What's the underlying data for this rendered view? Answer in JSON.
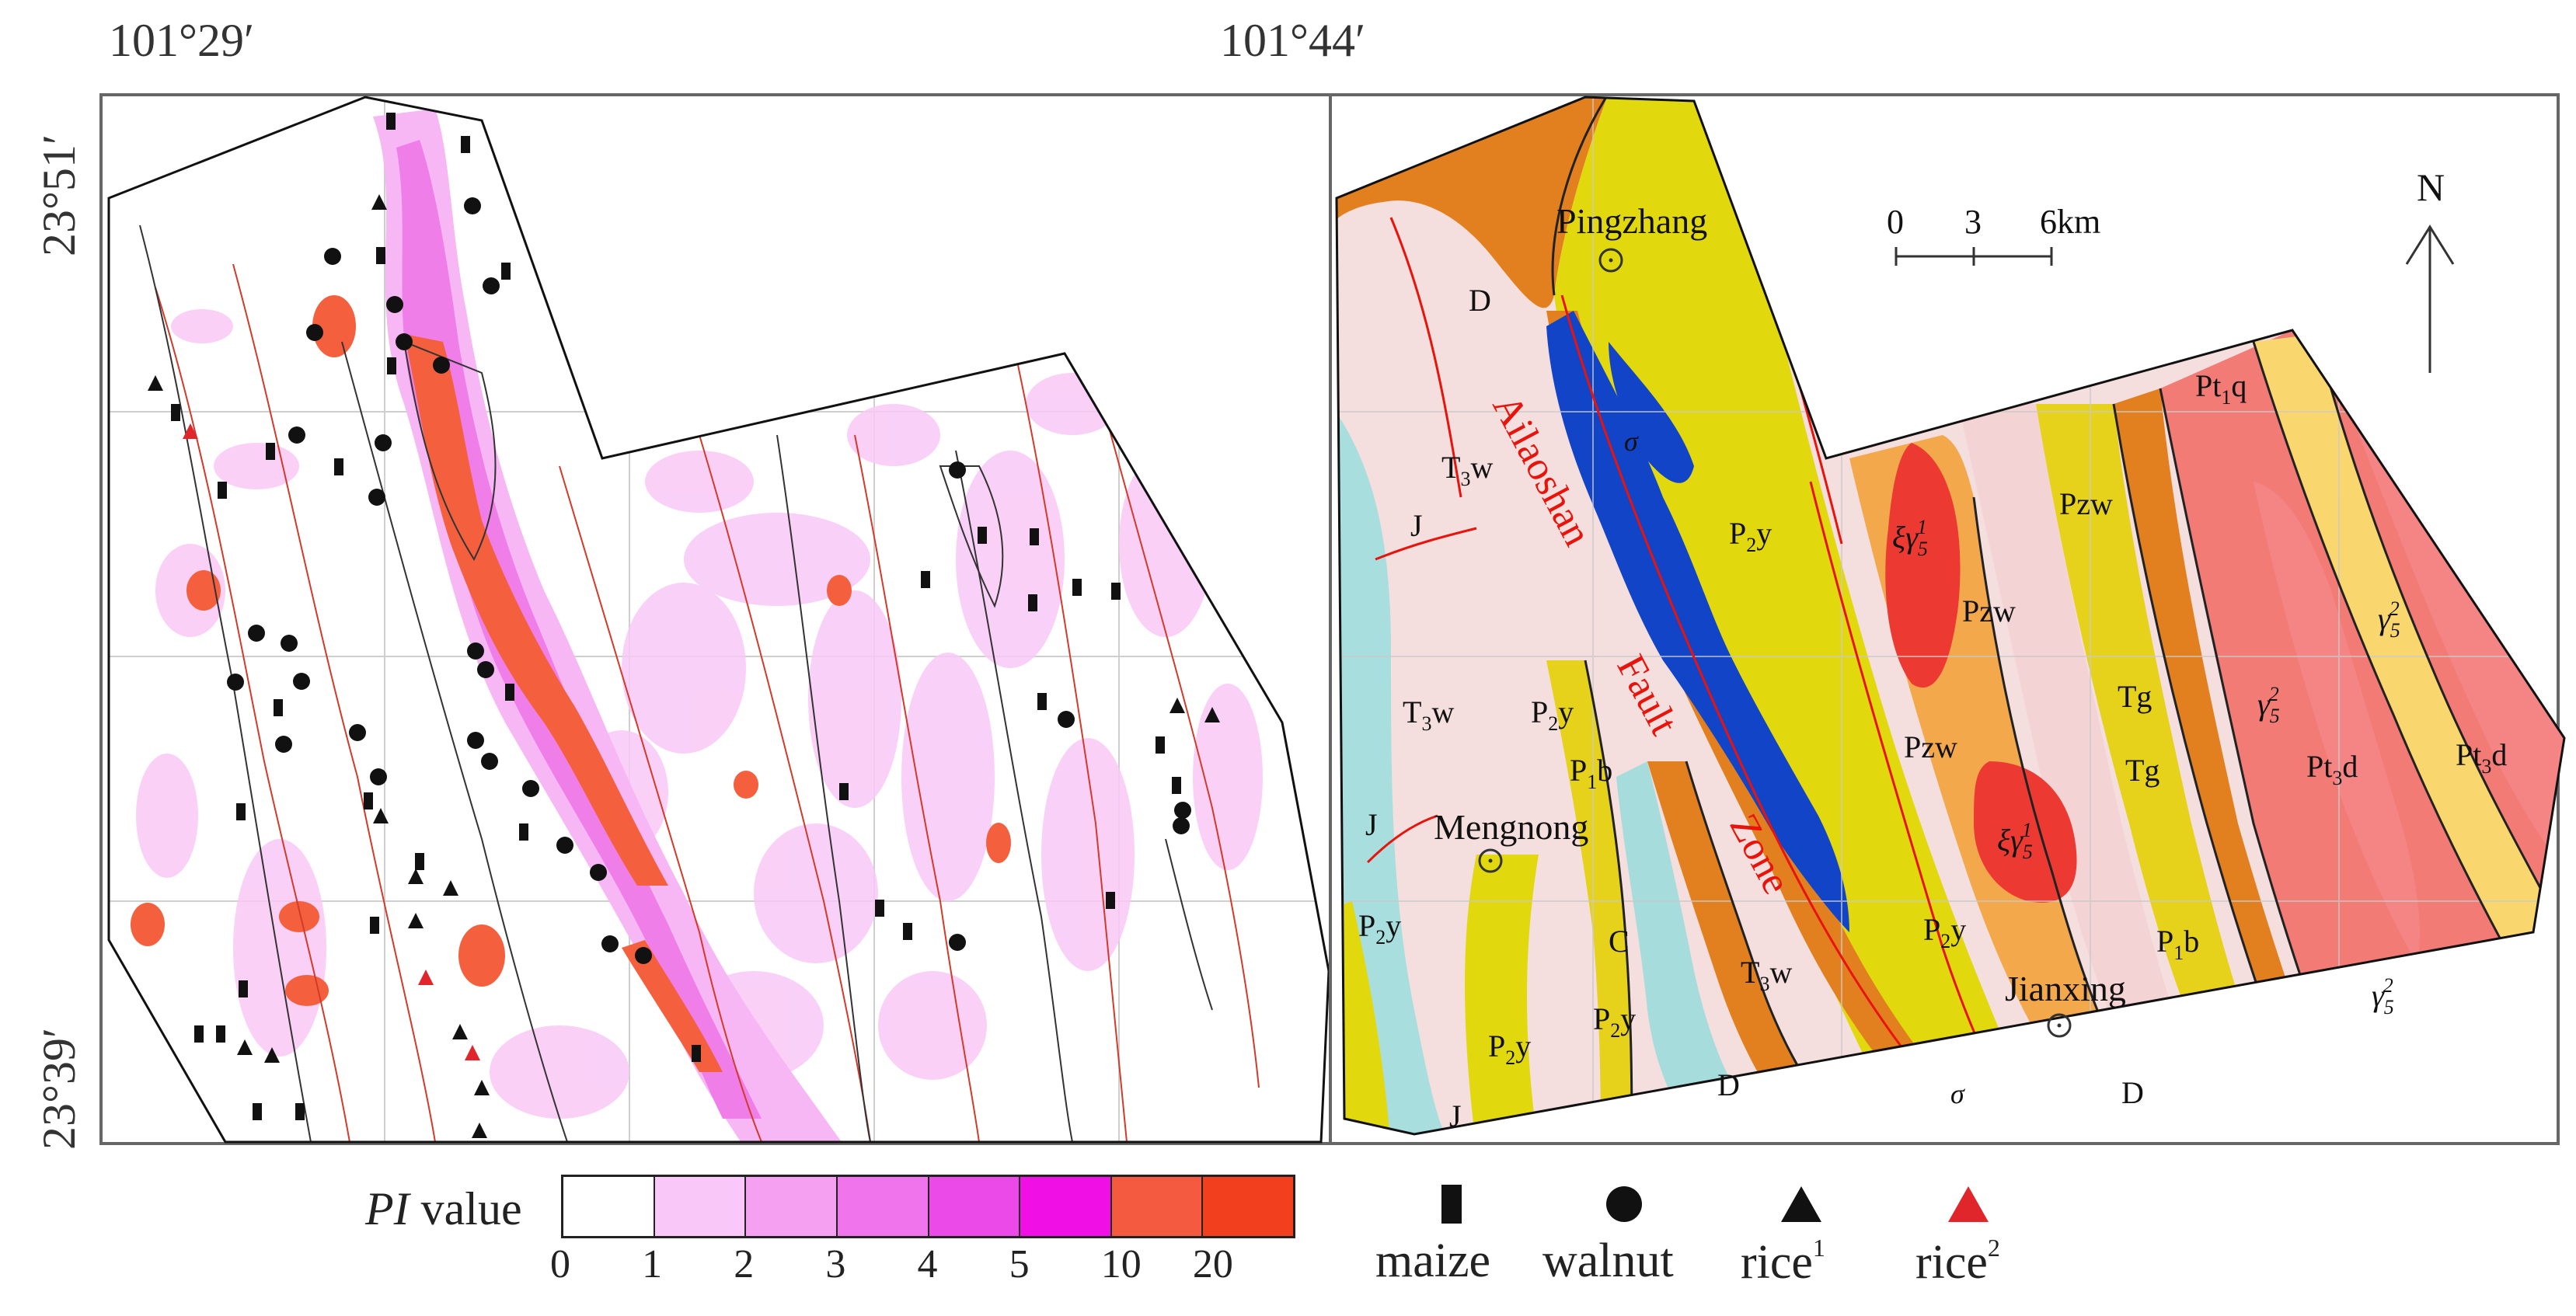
{
  "coords": {
    "lon_left": "101°29′",
    "lon_right": "101°44′",
    "lat_top": "23°51′",
    "lat_bottom": "23°39′"
  },
  "left_map": {
    "symbols": {
      "maize": "#111111",
      "walnut": "#111111",
      "rice1": "#111111",
      "rice2": "#e0252b"
    }
  },
  "right_map": {
    "towns": [
      "Pingzhang",
      "Mengnong",
      "Jianxing"
    ],
    "fault_words": [
      "Ailaoshan",
      "Fault",
      "Zone"
    ],
    "scale": {
      "ticks": [
        "0",
        "3",
        "6km"
      ]
    },
    "north": "N",
    "units": {
      "D": "D",
      "T3w": "T3w",
      "J": "J",
      "P2y": "P2y",
      "P1b": "P1b",
      "C": "C",
      "Pzw": "Pzw",
      "Tg": "Tg",
      "Pt1q": "Pt1q",
      "Pt3d": "Pt3d",
      "sigma": "σ",
      "xi_gamma": "ξγ",
      "gamma": "γ",
      "sub5": "5",
      "sup1": "1",
      "sup2": "2"
    }
  },
  "legend": {
    "title_italic": "PI",
    "title_rest": " value",
    "breaks": [
      "0",
      "1",
      "2",
      "3",
      "4",
      "5",
      "10",
      "20"
    ],
    "colors": [
      "#ffffff",
      "#fac8f8",
      "#f5a0f0",
      "#f075ec",
      "#ec4ae8",
      "#f010e6",
      "#f45a40",
      "#f2401e"
    ],
    "symbols": [
      {
        "label": "maize",
        "sup": ""
      },
      {
        "label": "walnut",
        "sup": ""
      },
      {
        "label": "rice",
        "sup": "1"
      },
      {
        "label": "rice",
        "sup": "2"
      }
    ]
  },
  "geo_colors": {
    "D": "#e2801f",
    "T3w": "#f4dede",
    "J": "#a8dede",
    "P2y": "#e2d80e",
    "Pzw": "#f3a94b",
    "Tg": "#f3d3d3",
    "P1b": "#e6d11b",
    "C": "#a6dcdc",
    "Pt1q": "#f37b76",
    "Pt3d": "#fad66e",
    "gamma": "#f58585",
    "xigamma": "#ec3a33",
    "sigma": "#1244c8",
    "fault": "#e8140c"
  }
}
